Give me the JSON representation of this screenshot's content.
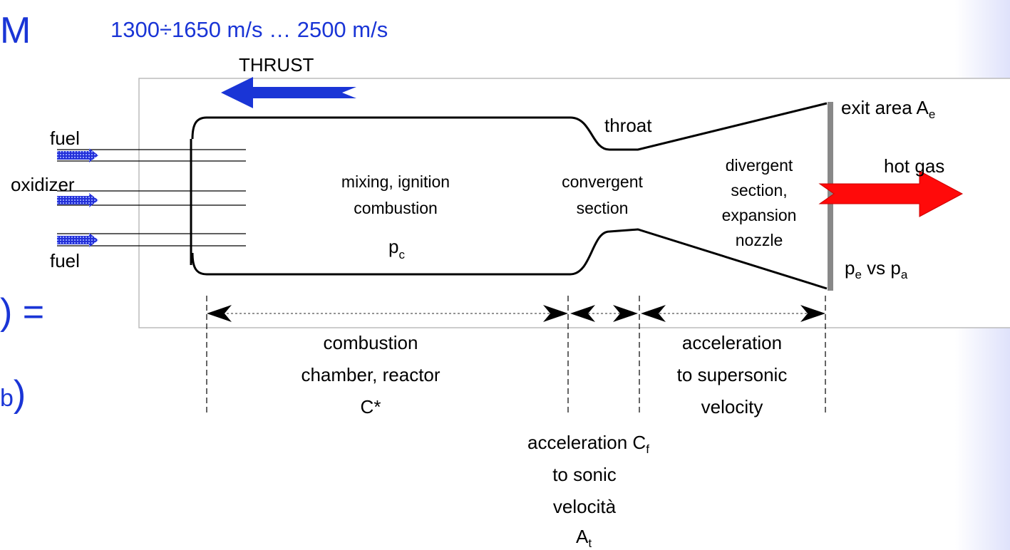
{
  "fragments": {
    "top": "M",
    "middle": ") =",
    "bottom_sub": "b",
    "bottom": ")"
  },
  "speed": "1300÷1650 m/s … 2500 m/s",
  "thrust": "THRUST",
  "inlets": {
    "fuel_top": "fuel",
    "oxidizer": "oxidizer",
    "fuel_bottom": "fuel"
  },
  "chamber": {
    "lines": [
      "mixing, ignition",
      "combustion"
    ],
    "pressure": "p",
    "pressure_sub": "c"
  },
  "throat": "throat",
  "convergent": [
    "convergent",
    "section"
  ],
  "divergent": [
    "divergent",
    "section,",
    "expansion",
    "nozzle"
  ],
  "exit_area": {
    "text": "exit area A",
    "sub": "e"
  },
  "hot_gas": "hot gas",
  "pressure_compare": {
    "p1": "p",
    "p1_sub": "e",
    "vs": " vs p",
    "p2_sub": "a"
  },
  "zones": {
    "chamber": [
      "combustion",
      "chamber, reactor",
      "C*"
    ],
    "supersonic": [
      "acceleration",
      "to supersonic",
      "velocity"
    ],
    "sonic": {
      "line1": "acceleration  C",
      "line1_sub": "f",
      "lines": [
        "to sonic",
        "velocità"
      ],
      "area": "A",
      "area_sub": "t"
    }
  }
}
